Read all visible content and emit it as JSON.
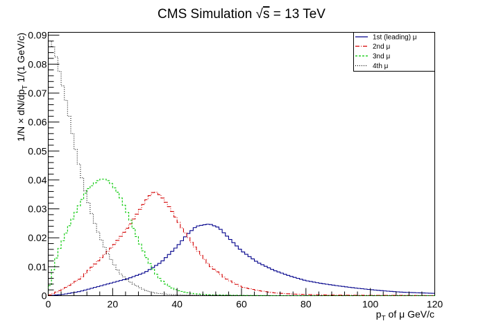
{
  "chart_data": {
    "type": "line",
    "style": "step-histogram",
    "title": "CMS Simulation √s = 13 TeV",
    "title_parts": {
      "prefix": "CMS Simulation ",
      "root": "s",
      "suffix": " = 13 TeV"
    },
    "ylabel": "1/N × dN/dp_T 1/(1 GeV/c)",
    "ylabel_parts": {
      "a": "1/N × dN/dp",
      "sub": "T",
      "b": " 1/(1 GeV/c)"
    },
    "xlabel": "p_T of μ GeV/c",
    "xlabel_parts": {
      "a": "p",
      "sub": "T",
      "b": " of μ GeV/c"
    },
    "xlim": [
      0,
      120
    ],
    "ylim": [
      0,
      0.091
    ],
    "x_ticks": [
      "0",
      "20",
      "40",
      "60",
      "80",
      "100",
      "120"
    ],
    "y_ticks": [
      "0",
      "0.01",
      "0.02",
      "0.03",
      "0.04",
      "0.05",
      "0.06",
      "0.07",
      "0.08",
      "0.09"
    ],
    "grid": false,
    "legend_position": "top-right",
    "bin_width": 1,
    "series": [
      {
        "name": "1st (leading) μ",
        "legend_label": "1st (leading) μ",
        "color": "#00008b",
        "dash": "",
        "points": [
          [
            0,
            0
          ],
          [
            5,
            0.0005
          ],
          [
            10,
            0.0015
          ],
          [
            15,
            0.003
          ],
          [
            20,
            0.0045
          ],
          [
            25,
            0.006
          ],
          [
            30,
            0.008
          ],
          [
            35,
            0.0115
          ],
          [
            40,
            0.017
          ],
          [
            43,
            0.021
          ],
          [
            46,
            0.024
          ],
          [
            50,
            0.0248
          ],
          [
            53,
            0.0235
          ],
          [
            56,
            0.02
          ],
          [
            60,
            0.0155
          ],
          [
            65,
            0.0115
          ],
          [
            70,
            0.0088
          ],
          [
            75,
            0.0068
          ],
          [
            80,
            0.0052
          ],
          [
            85,
            0.0042
          ],
          [
            90,
            0.0034
          ],
          [
            95,
            0.0027
          ],
          [
            100,
            0.0021
          ],
          [
            105,
            0.0016
          ],
          [
            110,
            0.0012
          ],
          [
            115,
            0.001
          ],
          [
            120,
            0.0008
          ]
        ]
      },
      {
        "name": "2nd μ",
        "legend_label": "2nd μ",
        "color": "#d40000",
        "dash": "6,2,1,2",
        "points": [
          [
            0,
            0
          ],
          [
            2,
            0.001
          ],
          [
            5,
            0.0025
          ],
          [
            10,
            0.006
          ],
          [
            15,
            0.0115
          ],
          [
            20,
            0.017
          ],
          [
            25,
            0.024
          ],
          [
            28,
            0.029
          ],
          [
            31,
            0.034
          ],
          [
            33,
            0.0362
          ],
          [
            35,
            0.0345
          ],
          [
            38,
            0.03
          ],
          [
            42,
            0.0225
          ],
          [
            46,
            0.016
          ],
          [
            50,
            0.0105
          ],
          [
            55,
            0.006
          ],
          [
            60,
            0.003
          ],
          [
            65,
            0.0018
          ],
          [
            70,
            0.001
          ],
          [
            75,
            0.0006
          ],
          [
            80,
            0.0004
          ],
          [
            90,
            0.0002
          ],
          [
            100,
            0.0001
          ],
          [
            110,
            0.0001
          ],
          [
            120,
            0.0
          ]
        ]
      },
      {
        "name": "3nd μ",
        "legend_label": "3nd μ",
        "color": "#00c800",
        "dash": "3,2",
        "points": [
          [
            0,
            0.0
          ],
          [
            1,
            0.007
          ],
          [
            3,
            0.015
          ],
          [
            6,
            0.023
          ],
          [
            9,
            0.03
          ],
          [
            12,
            0.0365
          ],
          [
            15,
            0.0395
          ],
          [
            17,
            0.0405
          ],
          [
            19,
            0.0395
          ],
          [
            22,
            0.035
          ],
          [
            25,
            0.0275
          ],
          [
            28,
            0.019
          ],
          [
            31,
            0.012
          ],
          [
            34,
            0.0065
          ],
          [
            37,
            0.0035
          ],
          [
            40,
            0.0018
          ],
          [
            45,
            0.0007
          ],
          [
            50,
            0.0003
          ],
          [
            60,
            0.0001
          ],
          [
            70,
            0.0
          ],
          [
            120,
            0.0
          ]
        ]
      },
      {
        "name": "4th μ",
        "legend_label": "4th μ",
        "color": "#000000",
        "dash": "1,2",
        "points": [
          [
            0,
            0.089
          ],
          [
            2,
            0.085
          ],
          [
            4,
            0.075
          ],
          [
            6,
            0.065
          ],
          [
            8,
            0.053
          ],
          [
            10,
            0.043
          ],
          [
            12,
            0.034
          ],
          [
            14,
            0.0265
          ],
          [
            16,
            0.0205
          ],
          [
            18,
            0.0155
          ],
          [
            20,
            0.0115
          ],
          [
            22,
            0.008
          ],
          [
            25,
            0.005
          ],
          [
            28,
            0.003
          ],
          [
            31,
            0.0015
          ],
          [
            34,
            0.0008
          ],
          [
            38,
            0.0004
          ],
          [
            45,
            0.0002
          ],
          [
            55,
            0.0001
          ],
          [
            70,
            0.0
          ],
          [
            120,
            0.0
          ]
        ]
      }
    ]
  }
}
